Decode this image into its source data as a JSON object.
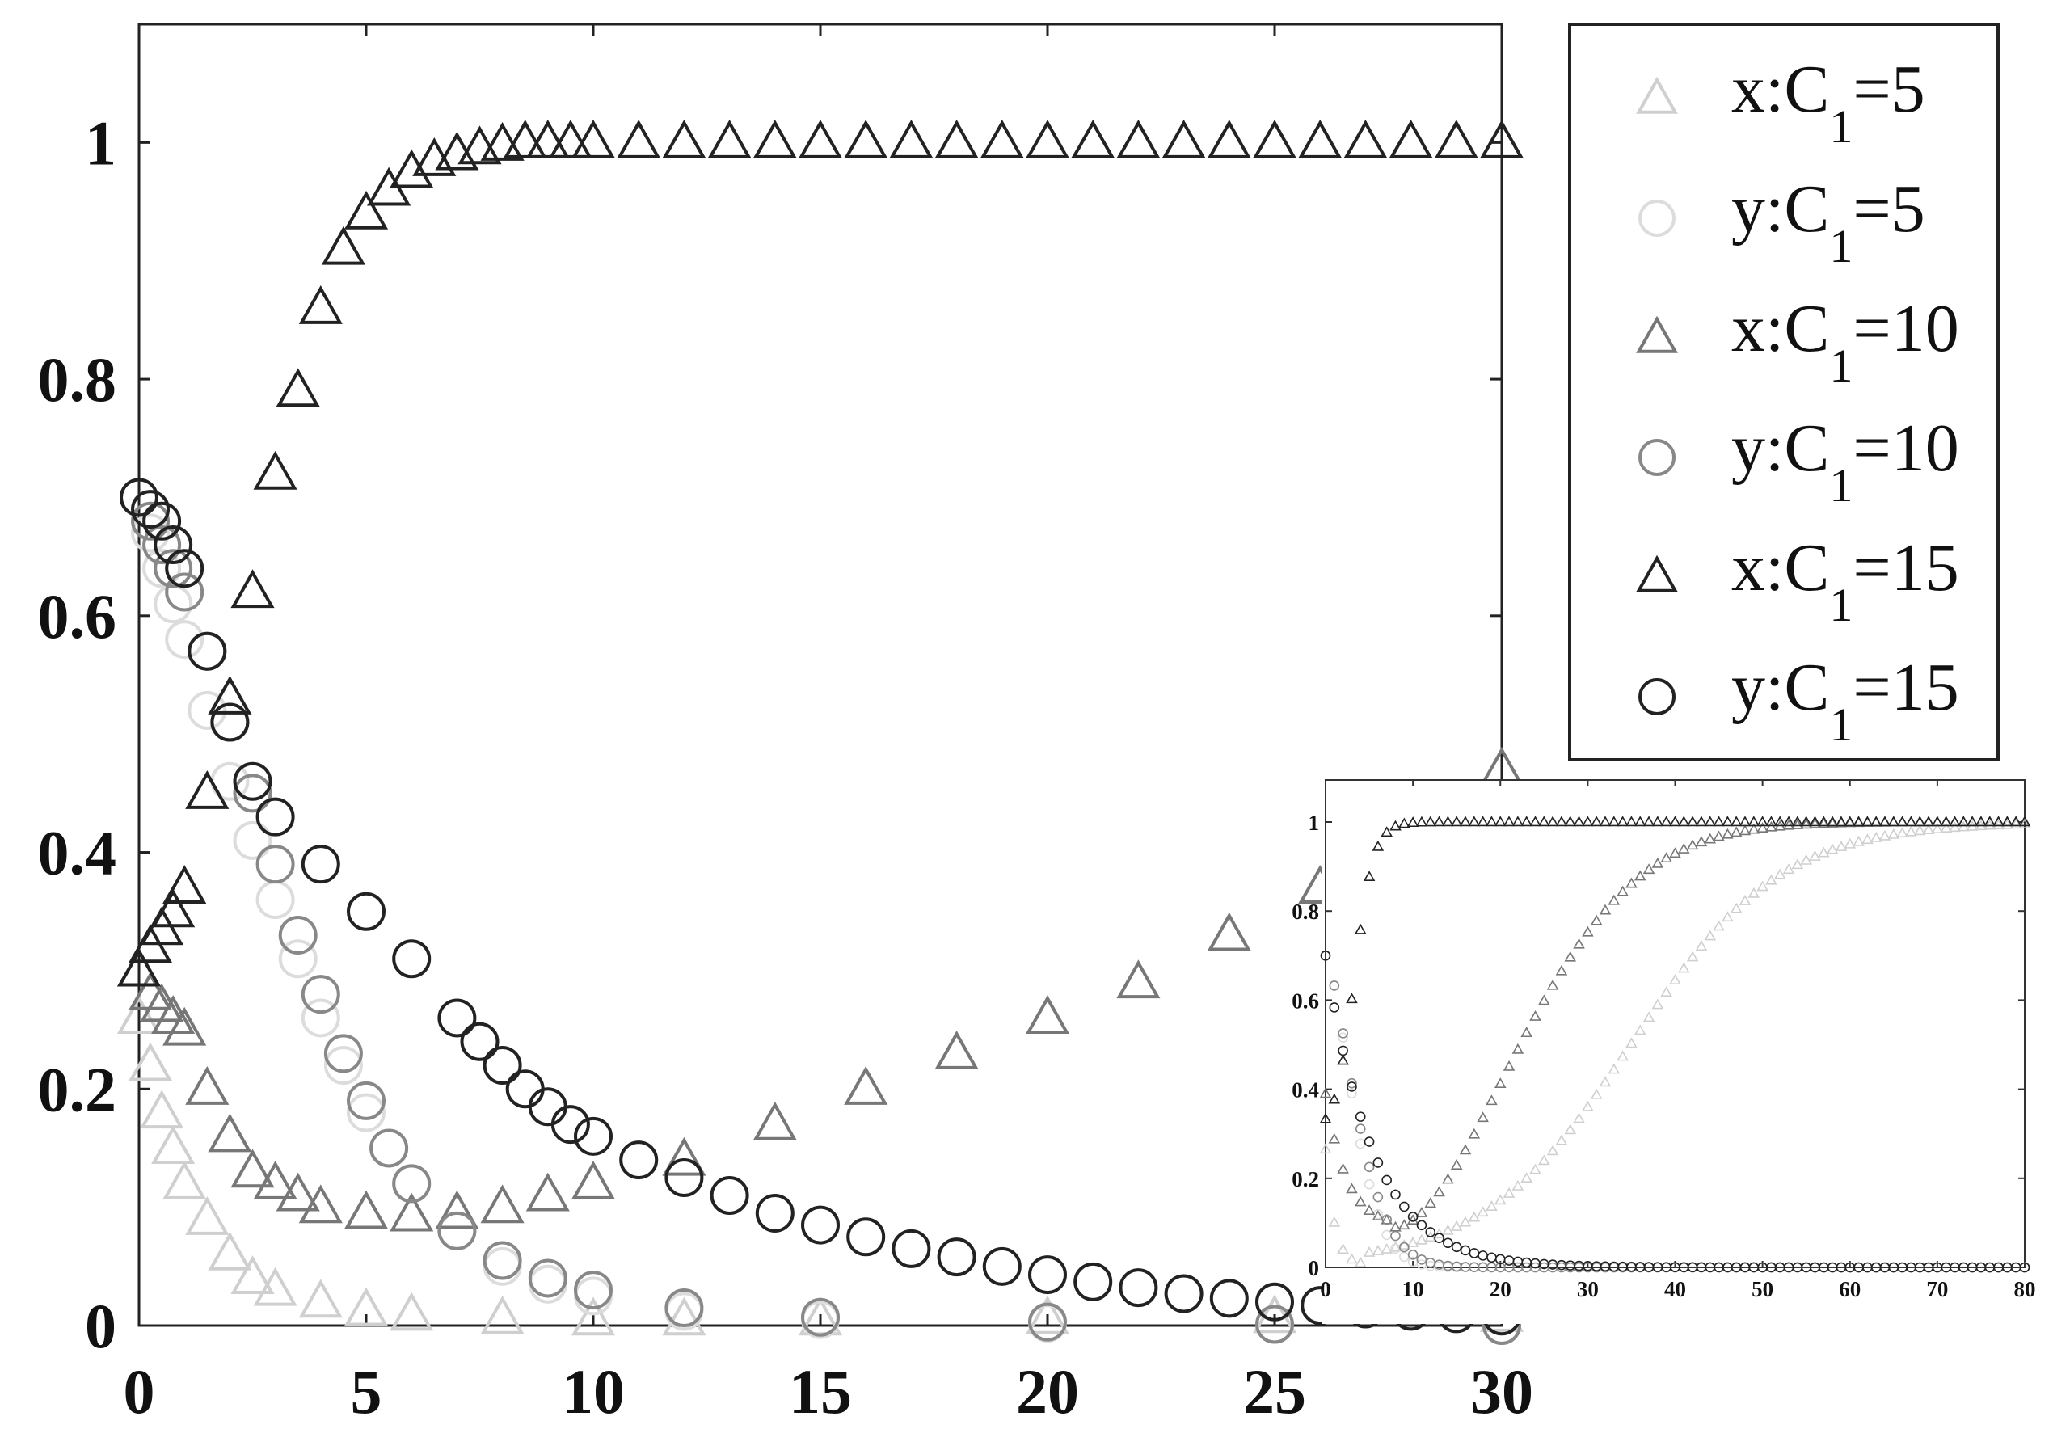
{
  "chart_data": [
    {
      "type": "scatter",
      "title": "",
      "xlabel": "",
      "ylabel": "",
      "xlim": [
        0,
        30
      ],
      "ylim": [
        0,
        1.1
      ],
      "xticks": [
        0,
        5,
        10,
        15,
        20,
        25,
        30
      ],
      "xtick_labels": [
        "0",
        "5",
        "10",
        "15",
        "20",
        "25",
        "30"
      ],
      "yticks": [
        0,
        0.2,
        0.4,
        0.6,
        0.8,
        1
      ],
      "ytick_labels": [
        "0",
        "0.2",
        "0.4",
        "0.6",
        "0.8",
        "1"
      ],
      "grid": false,
      "legend_position": "top-right",
      "series": [
        {
          "name": "x:C1=5",
          "legend_prefix": "x:C",
          "legend_sub": "1",
          "legend_suffix": "=5",
          "marker": "triangle",
          "color": "#cfcfcf",
          "x": [
            0,
            0.25,
            0.5,
            0.75,
            1,
            1.5,
            2,
            2.5,
            3,
            4,
            5,
            6,
            8,
            10,
            12,
            15,
            20,
            25,
            30
          ],
          "y": [
            0.26,
            0.22,
            0.18,
            0.15,
            0.12,
            0.09,
            0.06,
            0.04,
            0.03,
            0.02,
            0.013,
            0.009,
            0.006,
            0.005,
            0.005,
            0.005,
            0.006,
            0.007,
            0.008
          ]
        },
        {
          "name": "y:C1=5",
          "legend_prefix": "y:C",
          "legend_sub": "1",
          "legend_suffix": "=5",
          "marker": "circle",
          "color": "#dcdcdc",
          "x": [
            0,
            0.25,
            0.5,
            0.75,
            1,
            1.5,
            2,
            2.5,
            3,
            3.5,
            4,
            4.5,
            5,
            5.5,
            6,
            7,
            8,
            9,
            10,
            12,
            15,
            20,
            25,
            30
          ],
          "y": [
            0.7,
            0.67,
            0.64,
            0.61,
            0.58,
            0.52,
            0.46,
            0.41,
            0.36,
            0.31,
            0.26,
            0.22,
            0.18,
            0.15,
            0.12,
            0.08,
            0.05,
            0.035,
            0.025,
            0.012,
            0.005,
            0.002,
            0.001,
            0
          ]
        },
        {
          "name": "x:C1=10",
          "legend_prefix": "x:C",
          "legend_sub": "1",
          "legend_suffix": "=10",
          "marker": "triangle",
          "color": "#777777",
          "x": [
            0,
            0.25,
            0.5,
            0.75,
            1,
            1.5,
            2,
            2.5,
            3,
            3.5,
            4,
            5,
            6,
            7,
            8,
            9,
            10,
            12,
            14,
            16,
            18,
            20,
            22,
            24,
            26,
            28,
            30
          ],
          "y": [
            0.3,
            0.28,
            0.27,
            0.26,
            0.25,
            0.2,
            0.16,
            0.13,
            0.12,
            0.11,
            0.1,
            0.095,
            0.093,
            0.095,
            0.1,
            0.11,
            0.12,
            0.14,
            0.17,
            0.2,
            0.23,
            0.26,
            0.29,
            0.33,
            0.37,
            0.42,
            0.47
          ]
        },
        {
          "name": "y:C1=10",
          "legend_prefix": "y:C",
          "legend_sub": "1",
          "legend_suffix": "=10",
          "marker": "circle",
          "color": "#888888",
          "x": [
            0,
            0.25,
            0.5,
            0.75,
            1,
            1.5,
            2,
            2.5,
            3,
            3.5,
            4,
            4.5,
            5,
            5.5,
            6,
            7,
            8,
            9,
            10,
            12,
            15,
            20,
            25,
            30
          ],
          "y": [
            0.7,
            0.68,
            0.66,
            0.64,
            0.62,
            0.57,
            0.51,
            0.45,
            0.39,
            0.33,
            0.28,
            0.23,
            0.19,
            0.15,
            0.12,
            0.08,
            0.055,
            0.04,
            0.03,
            0.015,
            0.007,
            0.003,
            0.001,
            0
          ]
        },
        {
          "name": "x:C1=15",
          "legend_prefix": "x:C",
          "legend_sub": "1",
          "legend_suffix": "=15",
          "marker": "triangle",
          "color": "#222222",
          "x": [
            0,
            0.25,
            0.5,
            0.75,
            1,
            1.5,
            2,
            2.5,
            3,
            3.5,
            4,
            4.5,
            5,
            5.5,
            6,
            6.5,
            7,
            7.5,
            8,
            8.5,
            9,
            9.5,
            10,
            11,
            12,
            13,
            14,
            15,
            16,
            17,
            18,
            19,
            20,
            21,
            22,
            23,
            24,
            25,
            26,
            27,
            28,
            29,
            30
          ],
          "y": [
            0.3,
            0.32,
            0.335,
            0.35,
            0.37,
            0.45,
            0.53,
            0.62,
            0.72,
            0.79,
            0.86,
            0.91,
            0.94,
            0.96,
            0.975,
            0.985,
            0.99,
            0.995,
            0.998,
            1,
            1,
            1,
            1,
            1,
            1,
            1,
            1,
            1,
            1,
            1,
            1,
            1,
            1,
            1,
            1,
            1,
            1,
            1,
            1,
            1,
            1,
            1,
            1
          ]
        },
        {
          "name": "y:C1=15",
          "legend_prefix": "y:C",
          "legend_sub": "1",
          "legend_suffix": "=15",
          "marker": "circle",
          "color": "#222222",
          "x": [
            0,
            0.25,
            0.5,
            0.75,
            1,
            1.5,
            2,
            2.5,
            3,
            4,
            5,
            6,
            7,
            7.5,
            8,
            8.5,
            9,
            9.5,
            10,
            11,
            12,
            13,
            14,
            15,
            16,
            17,
            18,
            19,
            20,
            21,
            22,
            23,
            24,
            25,
            26,
            27,
            28,
            29,
            30
          ],
          "y": [
            0.7,
            0.69,
            0.68,
            0.66,
            0.64,
            0.57,
            0.51,
            0.46,
            0.43,
            0.39,
            0.35,
            0.31,
            0.26,
            0.24,
            0.22,
            0.2,
            0.185,
            0.17,
            0.16,
            0.14,
            0.125,
            0.11,
            0.095,
            0.085,
            0.075,
            0.065,
            0.058,
            0.05,
            0.043,
            0.037,
            0.032,
            0.027,
            0.023,
            0.02,
            0.017,
            0.014,
            0.012,
            0.01,
            0.008
          ]
        }
      ]
    },
    {
      "type": "scatter",
      "title": "",
      "xlabel": "",
      "ylabel": "",
      "xlim": [
        0,
        80
      ],
      "ylim": [
        0,
        1
      ],
      "xticks": [
        0,
        10,
        20,
        30,
        40,
        50,
        60,
        70,
        80
      ],
      "xtick_labels": [
        "0",
        "10",
        "20",
        "30",
        "40",
        "50",
        "60",
        "70",
        "80"
      ],
      "yticks": [
        0,
        0.2,
        0.4,
        0.6,
        0.8,
        1
      ],
      "ytick_labels": [
        "0",
        "0.2",
        "0.4",
        "0.6",
        "0.8",
        "1"
      ],
      "grid": false,
      "legend_position": "none",
      "series": [
        {
          "name": "x:C1=5",
          "marker": "triangle",
          "color": "#cfcfcf",
          "model": "x5"
        },
        {
          "name": "y:C1=5",
          "marker": "circle",
          "color": "#dcdcdc",
          "model": "y5"
        },
        {
          "name": "x:C1=10",
          "marker": "triangle",
          "color": "#777777",
          "model": "x10"
        },
        {
          "name": "y:C1=10",
          "marker": "circle",
          "color": "#888888",
          "model": "y10"
        },
        {
          "name": "x:C1=15",
          "marker": "triangle",
          "color": "#222222",
          "model": "x15"
        },
        {
          "name": "y:C1=15",
          "marker": "circle",
          "color": "#222222",
          "model": "y15"
        }
      ]
    }
  ]
}
